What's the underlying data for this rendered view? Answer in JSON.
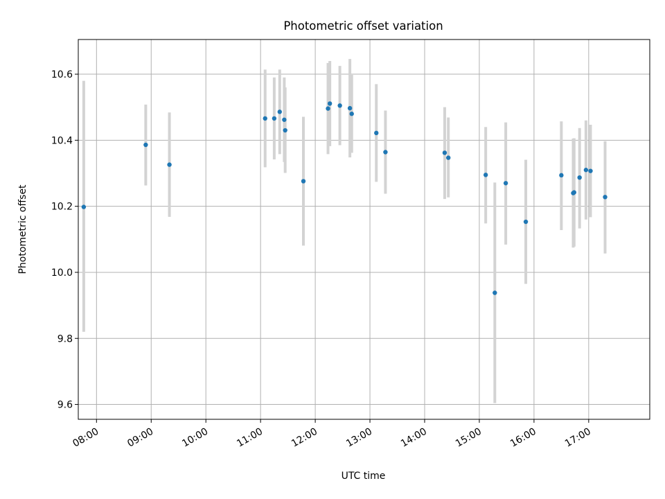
{
  "chart_data": {
    "type": "scatter",
    "title": "Photometric offset variation",
    "xlabel": "UTC time",
    "ylabel": "Photometric offset",
    "xlim": [
      "07:40",
      "18:07"
    ],
    "ylim": [
      9.555,
      10.705
    ],
    "grid": true,
    "x_ticks": [
      "08:00",
      "09:00",
      "10:00",
      "11:00",
      "12:00",
      "13:00",
      "14:00",
      "15:00",
      "16:00",
      "17:00"
    ],
    "y_ticks": [
      9.6,
      9.8,
      10.0,
      10.2,
      10.4,
      10.6
    ],
    "y_tick_labels": [
      "9.6",
      "9.8",
      "10.0",
      "10.2",
      "10.4",
      "10.6"
    ],
    "colors": {
      "point": "#1f77b4",
      "errorbar": "#d3d3d3",
      "grid": "#b0b0b0"
    },
    "points": [
      {
        "x": "07:46",
        "y": 10.198,
        "ylow": 9.82,
        "yhigh": 10.58
      },
      {
        "x": "08:54",
        "y": 10.386,
        "ylow": 10.263,
        "yhigh": 10.508
      },
      {
        "x": "09:20",
        "y": 10.326,
        "ylow": 10.168,
        "yhigh": 10.484
      },
      {
        "x": "11:05",
        "y": 10.466,
        "ylow": 10.318,
        "yhigh": 10.614
      },
      {
        "x": "11:15",
        "y": 10.466,
        "ylow": 10.342,
        "yhigh": 10.59
      },
      {
        "x": "11:21",
        "y": 10.486,
        "ylow": 10.358,
        "yhigh": 10.614
      },
      {
        "x": "11:26",
        "y": 10.462,
        "ylow": 10.334,
        "yhigh": 10.59
      },
      {
        "x": "11:27",
        "y": 10.43,
        "ylow": 10.301,
        "yhigh": 10.56
      },
      {
        "x": "11:47",
        "y": 10.276,
        "ylow": 10.081,
        "yhigh": 10.471
      },
      {
        "x": "12:14",
        "y": 10.496,
        "ylow": 10.358,
        "yhigh": 10.634
      },
      {
        "x": "12:16",
        "y": 10.511,
        "ylow": 10.382,
        "yhigh": 10.64
      },
      {
        "x": "12:27",
        "y": 10.505,
        "ylow": 10.385,
        "yhigh": 10.625
      },
      {
        "x": "12:38",
        "y": 10.497,
        "ylow": 10.348,
        "yhigh": 10.646
      },
      {
        "x": "12:40",
        "y": 10.48,
        "ylow": 10.362,
        "yhigh": 10.598
      },
      {
        "x": "13:07",
        "y": 10.422,
        "ylow": 10.274,
        "yhigh": 10.57
      },
      {
        "x": "13:17",
        "y": 10.364,
        "ylow": 10.238,
        "yhigh": 10.49
      },
      {
        "x": "14:22",
        "y": 10.362,
        "ylow": 10.222,
        "yhigh": 10.5
      },
      {
        "x": "14:26",
        "y": 10.347,
        "ylow": 10.227,
        "yhigh": 10.469
      },
      {
        "x": "15:07",
        "y": 10.295,
        "ylow": 10.148,
        "yhigh": 10.44
      },
      {
        "x": "15:17",
        "y": 9.938,
        "ylow": 9.604,
        "yhigh": 10.272
      },
      {
        "x": "15:29",
        "y": 10.27,
        "ylow": 10.084,
        "yhigh": 10.454
      },
      {
        "x": "15:51",
        "y": 10.153,
        "ylow": 9.965,
        "yhigh": 10.341
      },
      {
        "x": "16:30",
        "y": 10.294,
        "ylow": 10.128,
        "yhigh": 10.457
      },
      {
        "x": "16:43",
        "y": 10.24,
        "ylow": 10.075,
        "yhigh": 10.405
      },
      {
        "x": "16:44",
        "y": 10.242,
        "ylow": 10.078,
        "yhigh": 10.406
      },
      {
        "x": "16:50",
        "y": 10.287,
        "ylow": 10.133,
        "yhigh": 10.437
      },
      {
        "x": "16:57",
        "y": 10.31,
        "ylow": 10.16,
        "yhigh": 10.46
      },
      {
        "x": "17:02",
        "y": 10.307,
        "ylow": 10.167,
        "yhigh": 10.447
      },
      {
        "x": "17:18",
        "y": 10.228,
        "ylow": 10.057,
        "yhigh": 10.397
      }
    ]
  }
}
